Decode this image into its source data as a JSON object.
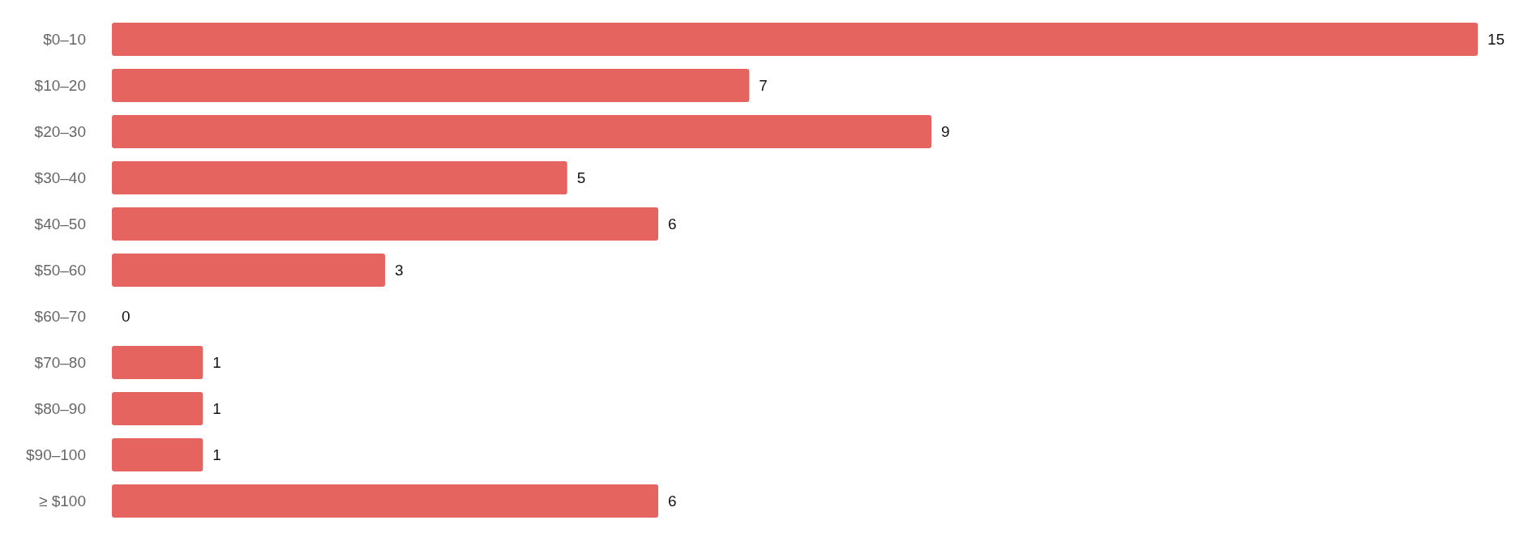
{
  "chart_data": {
    "type": "bar",
    "orientation": "horizontal",
    "categories": [
      "$0–10",
      "$10–20",
      "$20–30",
      "$30–40",
      "$40–50",
      "$50–60",
      "$60–70",
      "$70–80",
      "$80–90",
      "$90–100",
      "≥ $100"
    ],
    "values": [
      15,
      7,
      9,
      5,
      6,
      3,
      0,
      1,
      1,
      1,
      6
    ],
    "color": "#e5645f",
    "data_labels": true
  }
}
